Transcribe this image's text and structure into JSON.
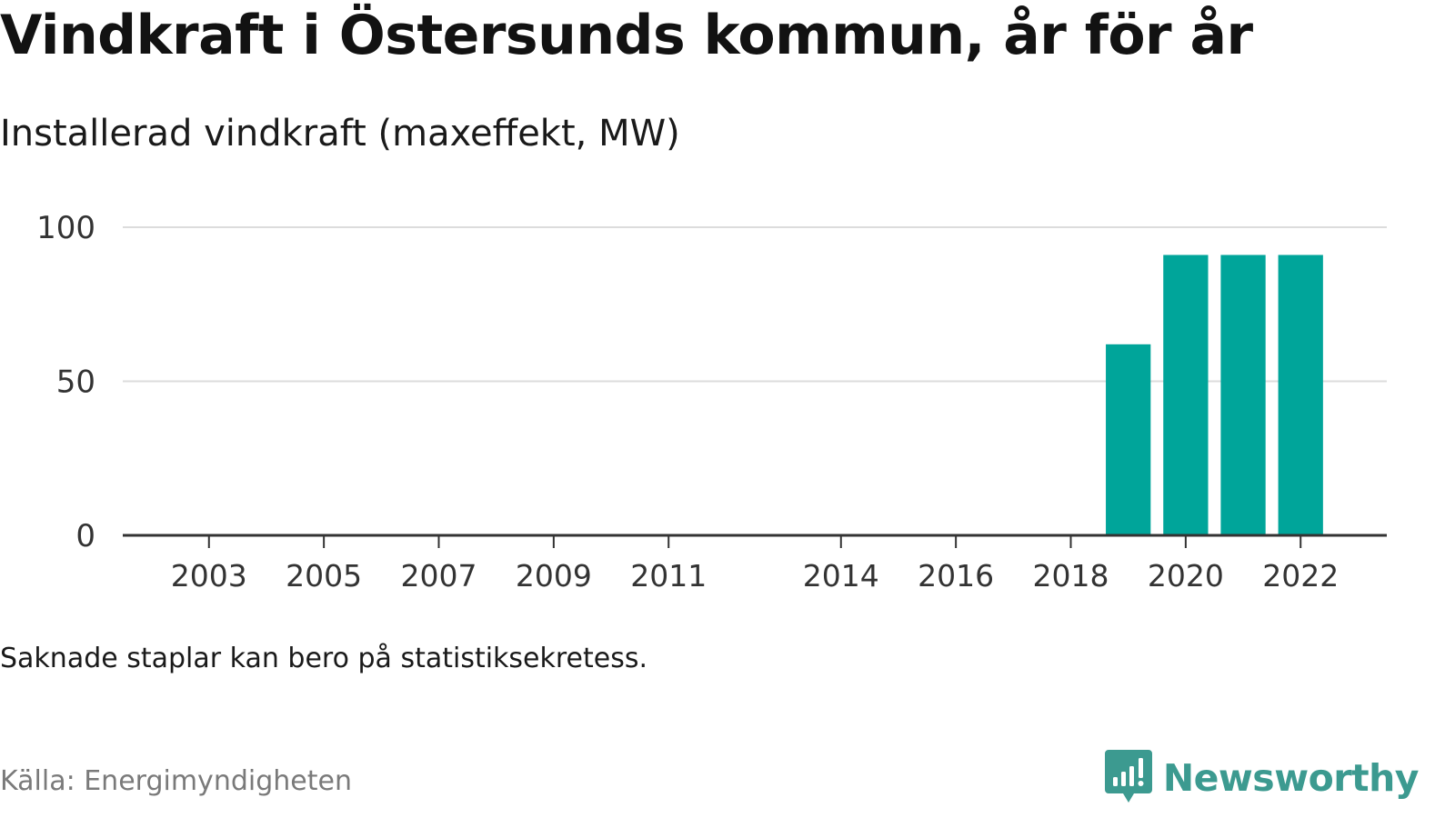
{
  "title": "Vindkraft i Östersunds kommun, år för år",
  "subtitle": "Installerad vindkraft (maxeffekt, MW)",
  "note": "Saknade staplar kan bero på statistiksekretess.",
  "source": "Källa: Energimyndigheten",
  "brand": {
    "name": "Newsworthy",
    "icon": "newsworthy-logo-icon",
    "color": "#3c9a90"
  },
  "chart_data": {
    "type": "bar",
    "title": "Vindkraft i Östersunds kommun, år för år",
    "subtitle": "Installerad vindkraft (maxeffekt, MW)",
    "xlabel": "",
    "ylabel": "",
    "x_range": [
      2001.5,
      2023.5
    ],
    "ylim": [
      0,
      100
    ],
    "yticks": [
      0,
      50,
      100
    ],
    "xticks": [
      2003,
      2005,
      2007,
      2009,
      2011,
      2014,
      2016,
      2018,
      2020,
      2022
    ],
    "grid": true,
    "bar_color": "#00a59a",
    "series": [
      {
        "x": [
          2019,
          2020,
          2021,
          2022
        ],
        "values": [
          62,
          91,
          91,
          91
        ]
      }
    ]
  }
}
